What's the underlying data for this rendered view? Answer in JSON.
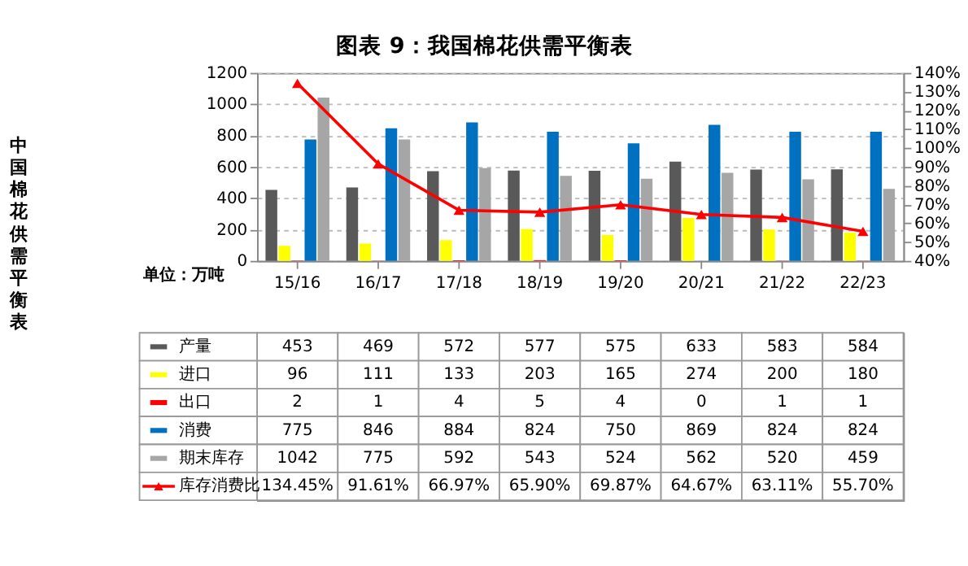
{
  "chart_data": {
    "type": "bar",
    "title": "图表 9：我国棉花供需平衡表",
    "ylabel": "中国棉花供需平衡表",
    "annotations": [
      "单位：万吨"
    ],
    "categories": [
      "15/16",
      "16/17",
      "17/18",
      "18/19",
      "19/20",
      "20/21",
      "21/22",
      "22/23"
    ],
    "series": [
      {
        "name": "产量",
        "color": "#595959",
        "values": [
          453,
          469,
          572,
          577,
          575,
          633,
          583,
          584
        ]
      },
      {
        "name": "进口",
        "color": "#ffff00",
        "values": [
          96,
          111,
          133,
          203,
          165,
          274,
          200,
          180
        ]
      },
      {
        "name": "出口",
        "color": "#ff0000",
        "values": [
          2,
          1,
          4,
          5,
          4,
          0,
          1,
          1
        ]
      },
      {
        "name": "消费",
        "color": "#0070c0",
        "values": [
          775,
          846,
          884,
          824,
          750,
          869,
          824,
          824
        ]
      },
      {
        "name": "期末库存",
        "color": "#a6a6a6",
        "values": [
          1042,
          775,
          592,
          543,
          524,
          562,
          520,
          459
        ]
      },
      {
        "name": "库存消费比",
        "color": "#ff0000",
        "type": "line",
        "axis": "y2",
        "marker": "triangle",
        "values": [
          134.45,
          91.61,
          66.97,
          65.9,
          69.87,
          64.67,
          63.11,
          55.7
        ],
        "value_labels": [
          "134.45%",
          "91.61%",
          "66.97%",
          "65.90%",
          "69.87%",
          "64.67%",
          "63.11%",
          "55.70%"
        ]
      }
    ],
    "ylim": [
      0,
      1200
    ],
    "yticks": [
      0,
      200,
      400,
      600,
      800,
      1000,
      1200
    ],
    "y2lim": [
      40,
      140
    ],
    "y2ticks": [
      {
        "value": 40,
        "label": "40%"
      },
      {
        "value": 50,
        "label": "50%"
      },
      {
        "value": 60,
        "label": "60%"
      },
      {
        "value": 70,
        "label": "70%"
      },
      {
        "value": 80,
        "label": "80%"
      },
      {
        "value": 90,
        "label": "90%"
      },
      {
        "value": 100,
        "label": "100%"
      },
      {
        "value": 110,
        "label": "110%"
      },
      {
        "value": 120,
        "label": "120%"
      },
      {
        "value": 130,
        "label": "130%"
      },
      {
        "value": 140,
        "label": "140%"
      }
    ],
    "grid": "y",
    "legend": "bottom",
    "data_labels": true
  }
}
